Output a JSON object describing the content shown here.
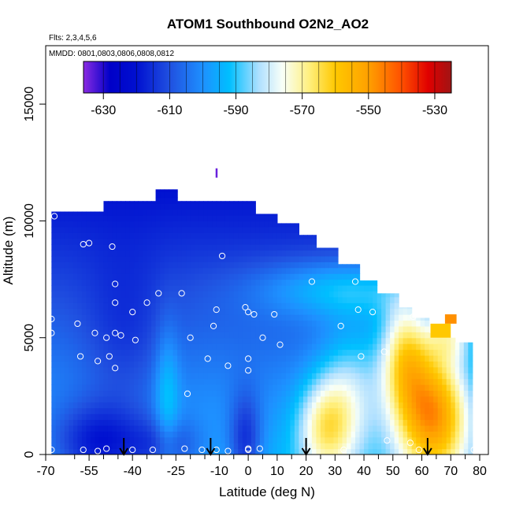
{
  "chart_data": {
    "type": "heatmap",
    "title": "ATOM1 Southbound O2N2_AO2",
    "flights_note": "Flts: 2,3,4,5,6",
    "dates_note": "MMDD: 0801,0803,0806,0808,0812",
    "xlabel": "Latitude (deg N)",
    "ylabel": "Altitude (m)",
    "xlim": [
      -70,
      83
    ],
    "ylim": [
      0,
      17500
    ],
    "x_ticks": [
      -70,
      -55,
      -40,
      -25,
      -10,
      0,
      10,
      20,
      30,
      40,
      50,
      60,
      70,
      80
    ],
    "x_tick_labels": [
      "-70",
      "-55",
      "-40",
      "-25",
      "-10",
      "0",
      "10",
      "20",
      "30",
      "40",
      "50",
      "60",
      "70",
      "80"
    ],
    "x_minor_ticks": [
      -60,
      -50,
      -45,
      -35,
      -30,
      -20,
      -15,
      -5,
      5,
      15,
      25,
      35,
      45,
      55,
      65,
      75
    ],
    "y_ticks": [
      0,
      5000,
      10000,
      15000
    ],
    "y_tick_labels": [
      "0",
      "5000",
      "10000",
      "15000"
    ],
    "colorbar": {
      "min": -636,
      "max": -525,
      "ticks": [
        -630,
        -610,
        -590,
        -570,
        -550,
        -530
      ],
      "tick_labels": [
        "-630",
        "-610",
        "-590",
        "-570",
        "-550",
        "-530"
      ],
      "stops": [
        {
          "v": -636,
          "c": "#8a2be2"
        },
        {
          "v": -628,
          "c": "#0000c8"
        },
        {
          "v": -620,
          "c": "#0010d0"
        },
        {
          "v": -610,
          "c": "#2050e0"
        },
        {
          "v": -600,
          "c": "#1e90ff"
        },
        {
          "v": -592,
          "c": "#00bfff"
        },
        {
          "v": -583,
          "c": "#b0e0ff"
        },
        {
          "v": -576,
          "c": "#f8fff8"
        },
        {
          "v": -568,
          "c": "#fff080"
        },
        {
          "v": -560,
          "c": "#ffc800"
        },
        {
          "v": -550,
          "c": "#ffa000"
        },
        {
          "v": -540,
          "c": "#ff5000"
        },
        {
          "v": -532,
          "c": "#e00000"
        },
        {
          "v": -525,
          "c": "#a01414"
        }
      ]
    },
    "profile_top": [
      {
        "lat": -68,
        "alt": 10500
      },
      {
        "lat": -50,
        "alt": 10800
      },
      {
        "lat": -45,
        "alt": 11000
      },
      {
        "lat": -33,
        "alt": 11400
      },
      {
        "lat": -18,
        "alt": 11400
      },
      {
        "lat": -8,
        "alt": 11100
      },
      {
        "lat": 0,
        "alt": 11000
      },
      {
        "lat": 5,
        "alt": 10800
      },
      {
        "lat": 10,
        "alt": 10500
      },
      {
        "lat": 17,
        "alt": 10000
      },
      {
        "lat": 24,
        "alt": 9400
      },
      {
        "lat": 31,
        "alt": 8800
      },
      {
        "lat": 38,
        "alt": 8100
      },
      {
        "lat": 45,
        "alt": 7400
      },
      {
        "lat": 52,
        "alt": 6900
      },
      {
        "lat": 57,
        "alt": 6300
      },
      {
        "lat": 63,
        "alt": 5800
      },
      {
        "lat": 70,
        "alt": 5200
      },
      {
        "lat": 76,
        "alt": 4600
      },
      {
        "lat": 78,
        "alt": 0
      }
    ],
    "profile_start_lat": -68,
    "top_step_alt": [
      {
        "from": -68,
        "to": -50,
        "alt": 10400
      },
      {
        "from": -50,
        "to": -32,
        "alt": 10850
      },
      {
        "from": -32,
        "to": -24,
        "alt": 11350
      },
      {
        "from": -24,
        "to": 3,
        "alt": 10850
      },
      {
        "from": 3,
        "to": 10,
        "alt": 10300
      },
      {
        "from": 10,
        "to": 17,
        "alt": 9900
      },
      {
        "from": 17,
        "to": 24,
        "alt": 9400
      },
      {
        "from": 24,
        "to": 31,
        "alt": 8850
      },
      {
        "from": 31,
        "to": 38,
        "alt": 8150
      },
      {
        "from": 38,
        "to": 45,
        "alt": 7450
      },
      {
        "from": 45,
        "to": 52,
        "alt": 6900
      },
      {
        "from": 52,
        "to": 57,
        "alt": 6300
      },
      {
        "from": 57,
        "to": 62,
        "alt": 5850
      },
      {
        "from": 62,
        "to": 69,
        "alt": 5200
      },
      {
        "from": 69,
        "to": 72,
        "alt": 5000
      },
      {
        "from": 72,
        "to": 78,
        "alt": 4800
      }
    ],
    "isolated_marks": [
      {
        "lat": -11,
        "alt": 11850,
        "value": -634
      }
    ],
    "hot_patches": [
      {
        "lat_from": 68,
        "lat_to": 72,
        "alt_from": 5600,
        "alt_to": 6000,
        "value": -548
      },
      {
        "lat_from": 63,
        "lat_to": 70,
        "alt_from": 5000,
        "alt_to": 5600,
        "value": -560
      }
    ],
    "obs_points": [
      {
        "lat": -67,
        "alt": 10200
      },
      {
        "lat": -57,
        "alt": 9000
      },
      {
        "lat": -55,
        "alt": 9050
      },
      {
        "lat": -47,
        "alt": 8900
      },
      {
        "lat": -9,
        "alt": 8500
      },
      {
        "lat": -46,
        "alt": 7300
      },
      {
        "lat": -31,
        "alt": 6900
      },
      {
        "lat": -23,
        "alt": 6900
      },
      {
        "lat": 22,
        "alt": 7400
      },
      {
        "lat": 37,
        "alt": 7400
      },
      {
        "lat": -46,
        "alt": 6500
      },
      {
        "lat": -35,
        "alt": 6500
      },
      {
        "lat": -40,
        "alt": 6100
      },
      {
        "lat": -11,
        "alt": 6200
      },
      {
        "lat": -1,
        "alt": 6300
      },
      {
        "lat": 0,
        "alt": 6100
      },
      {
        "lat": 2,
        "alt": 6000
      },
      {
        "lat": 9,
        "alt": 6000
      },
      {
        "lat": 38,
        "alt": 6200
      },
      {
        "lat": 43,
        "alt": 6100
      },
      {
        "lat": 57,
        "alt": 5900
      },
      {
        "lat": 67,
        "alt": 6100
      },
      {
        "lat": -68,
        "alt": 5800
      },
      {
        "lat": -59,
        "alt": 5600
      },
      {
        "lat": -68,
        "alt": 5200
      },
      {
        "lat": -53,
        "alt": 5200
      },
      {
        "lat": -46,
        "alt": 5200
      },
      {
        "lat": -44,
        "alt": 5100
      },
      {
        "lat": -49,
        "alt": 5000
      },
      {
        "lat": -39,
        "alt": 4900
      },
      {
        "lat": -20,
        "alt": 5000
      },
      {
        "lat": -12,
        "alt": 5500
      },
      {
        "lat": 5,
        "alt": 5000
      },
      {
        "lat": 11,
        "alt": 4700
      },
      {
        "lat": 32,
        "alt": 5500
      },
      {
        "lat": 47,
        "alt": 4400
      },
      {
        "lat": -58,
        "alt": 4200
      },
      {
        "lat": -48,
        "alt": 4200
      },
      {
        "lat": -52,
        "alt": 4000
      },
      {
        "lat": -46,
        "alt": 3700
      },
      {
        "lat": -14,
        "alt": 4100
      },
      {
        "lat": -7,
        "alt": 3800
      },
      {
        "lat": 0,
        "alt": 4100
      },
      {
        "lat": 0,
        "alt": 3600
      },
      {
        "lat": 39,
        "alt": 4200
      },
      {
        "lat": 79,
        "alt": 3300
      },
      {
        "lat": -21,
        "alt": 2600
      },
      {
        "lat": -68,
        "alt": 200
      },
      {
        "lat": -57,
        "alt": 200
      },
      {
        "lat": -52,
        "alt": 150
      },
      {
        "lat": -49,
        "alt": 250
      },
      {
        "lat": -40,
        "alt": 200
      },
      {
        "lat": -33,
        "alt": 200
      },
      {
        "lat": -22,
        "alt": 250
      },
      {
        "lat": -16,
        "alt": 200
      },
      {
        "lat": -11,
        "alt": 200
      },
      {
        "lat": -7,
        "alt": 150
      },
      {
        "lat": 0,
        "alt": 250
      },
      {
        "lat": 0,
        "alt": 200
      },
      {
        "lat": 4,
        "alt": 250
      },
      {
        "lat": 20,
        "alt": 200
      },
      {
        "lat": 33,
        "alt": 200
      },
      {
        "lat": 48,
        "alt": 600
      },
      {
        "lat": 56,
        "alt": 500
      },
      {
        "lat": 59,
        "alt": 200
      },
      {
        "lat": 78,
        "alt": 200
      }
    ],
    "arrows_lat": [
      -43,
      -13,
      20,
      62
    ]
  }
}
